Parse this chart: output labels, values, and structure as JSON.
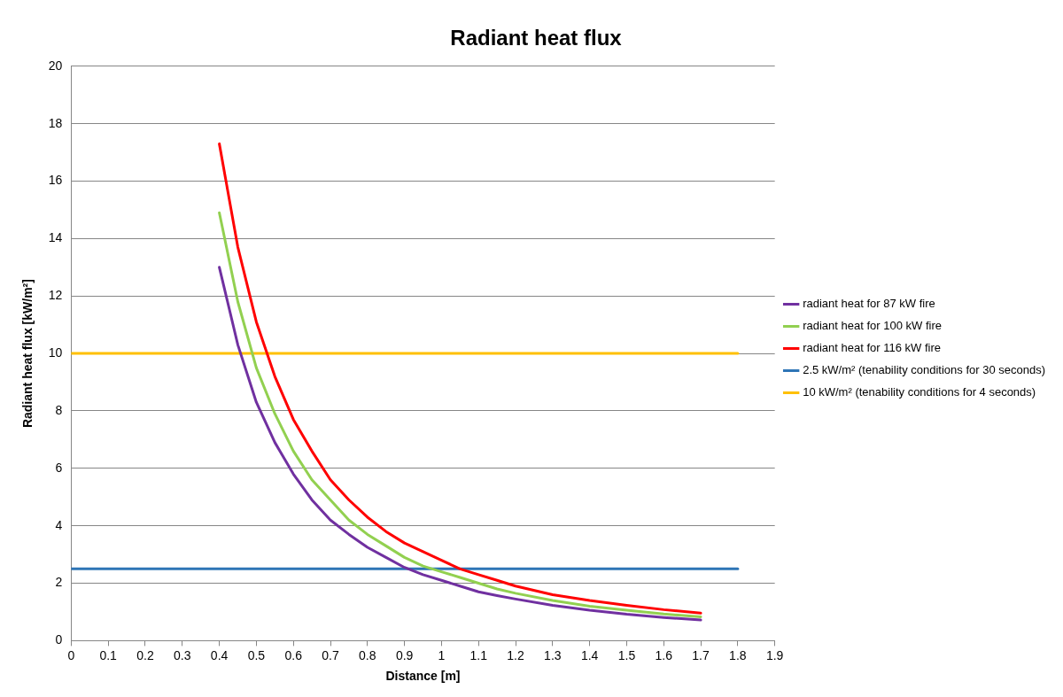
{
  "chart_data": {
    "type": "line",
    "title": "Radiant heat flux",
    "xlabel": "Distance [m]",
    "ylabel": "Radiant heat flux [kW/m²]",
    "xlim": [
      0,
      1.9
    ],
    "xticks": [
      0,
      0.1,
      0.2,
      0.3,
      0.4,
      0.5,
      0.6,
      0.7,
      0.8,
      0.9,
      1,
      1.1,
      1.2,
      1.3,
      1.4,
      1.5,
      1.6,
      1.7,
      1.8,
      1.9
    ],
    "ylim": [
      0,
      20
    ],
    "yticks": [
      0,
      2,
      4,
      6,
      8,
      10,
      12,
      14,
      16,
      18,
      20
    ],
    "grid": "y",
    "legend": "right",
    "marker": "none",
    "line_style": "solid",
    "series": [
      {
        "name": "radiant heat for 87 kW fire",
        "color": "#7030a0",
        "x": [
          0.4,
          0.45,
          0.5,
          0.55,
          0.6,
          0.65,
          0.7,
          0.75,
          0.8,
          0.85,
          0.9,
          0.95,
          1.0,
          1.05,
          1.1,
          1.15,
          1.2,
          1.3,
          1.4,
          1.5,
          1.6,
          1.7
        ],
        "values": [
          13.0,
          10.3,
          8.3,
          6.9,
          5.8,
          4.9,
          4.2,
          3.7,
          3.25,
          2.9,
          2.55,
          2.3,
          2.1,
          1.9,
          1.7,
          1.57,
          1.45,
          1.23,
          1.06,
          0.92,
          0.81,
          0.72
        ]
      },
      {
        "name": "radiant heat for 100 kW fire",
        "color": "#92d050",
        "x": [
          0.4,
          0.45,
          0.5,
          0.55,
          0.6,
          0.65,
          0.7,
          0.75,
          0.8,
          0.85,
          0.9,
          0.95,
          1.0,
          1.05,
          1.1,
          1.15,
          1.2,
          1.3,
          1.4,
          1.5,
          1.6,
          1.7
        ],
        "values": [
          14.9,
          11.8,
          9.5,
          7.9,
          6.6,
          5.6,
          4.9,
          4.2,
          3.7,
          3.3,
          2.9,
          2.6,
          2.4,
          2.2,
          2.0,
          1.8,
          1.65,
          1.4,
          1.2,
          1.06,
          0.93,
          0.83
        ]
      },
      {
        "name": "radiant heat for 116 kW fire",
        "color": "#ff0000",
        "x": [
          0.4,
          0.45,
          0.5,
          0.55,
          0.6,
          0.65,
          0.7,
          0.75,
          0.8,
          0.85,
          0.9,
          0.95,
          1.0,
          1.05,
          1.1,
          1.15,
          1.2,
          1.3,
          1.4,
          1.5,
          1.6,
          1.7
        ],
        "values": [
          17.3,
          13.7,
          11.1,
          9.2,
          7.7,
          6.6,
          5.6,
          4.9,
          4.3,
          3.8,
          3.4,
          3.1,
          2.8,
          2.5,
          2.3,
          2.1,
          1.9,
          1.6,
          1.4,
          1.23,
          1.08,
          0.96
        ]
      },
      {
        "name": "2.5 kW/m² (tenability conditions for 30 seconds)",
        "color": "#2e75b6",
        "x": [
          0,
          1.8
        ],
        "values": [
          2.5,
          2.5
        ]
      },
      {
        "name": "10 kW/m² (tenability conditions for 4 seconds)",
        "color": "#ffc000",
        "x": [
          0,
          1.8
        ],
        "values": [
          10,
          10
        ]
      }
    ]
  }
}
